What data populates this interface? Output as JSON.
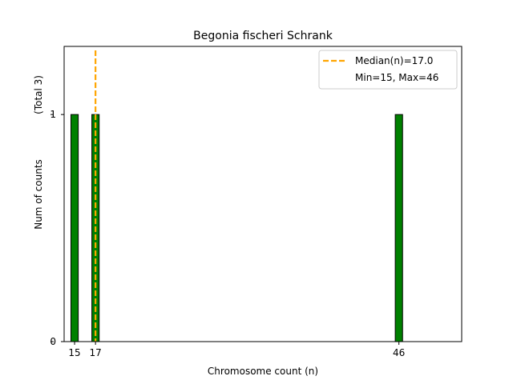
{
  "chart_data": {
    "type": "bar",
    "title": "Begonia fischeri Schrank",
    "xlabel": "Chromosome count (n)",
    "ylabel": "Num of counts",
    "ylabel_total": "(Total 3)",
    "x": [
      15,
      17,
      46
    ],
    "values": [
      1,
      1,
      1
    ],
    "xlim": [
      14,
      52
    ],
    "ylim": [
      0,
      1.3
    ],
    "xticks": [
      15,
      17,
      46
    ],
    "yticks": [
      0,
      1
    ],
    "bar_color": "#008000",
    "bar_edge_color": "#000000",
    "median": {
      "value": 17.0,
      "label": "Median(n)=17.0",
      "color": "#ffa500"
    },
    "range_label": "Min=15, Max=46",
    "legend_position": "upper right",
    "grid": false
  }
}
